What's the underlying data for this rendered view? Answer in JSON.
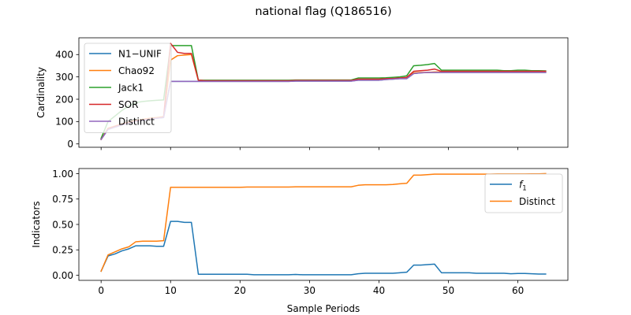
{
  "title": "national flag (Q186516)",
  "chart_data": [
    {
      "type": "line",
      "ylabel": "Cardinality",
      "xlabel": "",
      "xlim": [
        -3.2,
        67.2
      ],
      "ylim": [
        -15,
        475
      ],
      "xticks": [
        0,
        10,
        20,
        30,
        40,
        50,
        60
      ],
      "yticks": [
        0,
        100,
        200,
        300,
        400
      ],
      "legend_position": "upper left",
      "x": [
        0,
        1,
        2,
        3,
        4,
        5,
        6,
        7,
        8,
        9,
        10,
        11,
        12,
        13,
        14,
        15,
        16,
        17,
        18,
        19,
        20,
        21,
        22,
        23,
        24,
        25,
        26,
        27,
        28,
        29,
        30,
        31,
        32,
        33,
        34,
        35,
        36,
        37,
        38,
        39,
        40,
        41,
        42,
        43,
        44,
        45,
        46,
        47,
        48,
        49,
        50,
        51,
        52,
        53,
        54,
        55,
        56,
        57,
        58,
        59,
        60,
        61,
        62,
        63,
        64
      ],
      "series": [
        {
          "name": "N1−UNIF",
          "color": "#1f77b4",
          "values": [
            20,
            65,
            75,
            85,
            92,
            100,
            105,
            110,
            115,
            118,
            280,
            280,
            280,
            280,
            280,
            280,
            280,
            280,
            280,
            280,
            280,
            280,
            280,
            280,
            280,
            280,
            280,
            280,
            281,
            281,
            281,
            281,
            281,
            281,
            281,
            281,
            281,
            285,
            285,
            285,
            285,
            288,
            290,
            292,
            292,
            315,
            318,
            320,
            320,
            320,
            320,
            320,
            320,
            320,
            320,
            320,
            320,
            320,
            320,
            320,
            320,
            320,
            320,
            320,
            320
          ]
        },
        {
          "name": "Chao92",
          "color": "#ff7f0e",
          "values": [
            20,
            70,
            80,
            90,
            98,
            105,
            110,
            115,
            118,
            122,
            375,
            395,
            398,
            400,
            285,
            283,
            283,
            283,
            283,
            283,
            283,
            283,
            283,
            283,
            283,
            283,
            283,
            283,
            284,
            284,
            284,
            284,
            284,
            284,
            284,
            284,
            284,
            288,
            289,
            289,
            289,
            291,
            292,
            295,
            296,
            318,
            320,
            320,
            322,
            322,
            322,
            322,
            322,
            322,
            322,
            322,
            322,
            322,
            322,
            322,
            322,
            322,
            322,
            322,
            322
          ]
        },
        {
          "name": "Jack1",
          "color": "#2ca02c",
          "values": [
            25,
            100,
            125,
            150,
            170,
            185,
            190,
            193,
            195,
            197,
            440,
            440,
            440,
            440,
            285,
            285,
            285,
            285,
            285,
            285,
            285,
            285,
            285,
            285,
            285,
            285,
            285,
            285,
            286,
            286,
            286,
            286,
            286,
            286,
            286,
            286,
            286,
            295,
            295,
            295,
            295,
            296,
            298,
            300,
            305,
            350,
            352,
            355,
            360,
            330,
            330,
            330,
            330,
            330,
            330,
            330,
            330,
            330,
            328,
            328,
            330,
            330,
            328,
            328,
            327
          ]
        },
        {
          "name": "SOR",
          "color": "#d62728",
          "values": [
            20,
            68,
            78,
            88,
            95,
            102,
            108,
            112,
            116,
            120,
            450,
            410,
            405,
            405,
            285,
            283,
            283,
            283,
            283,
            283,
            283,
            283,
            283,
            283,
            283,
            283,
            283,
            283,
            284,
            284,
            284,
            284,
            284,
            284,
            284,
            284,
            284,
            290,
            290,
            290,
            290,
            292,
            293,
            295,
            298,
            325,
            328,
            330,
            335,
            325,
            325,
            325,
            325,
            325,
            325,
            325,
            325,
            325,
            325,
            325,
            325,
            325,
            325,
            325,
            325
          ]
        },
        {
          "name": "Distinct",
          "color": "#9467bd",
          "values": [
            20,
            65,
            75,
            85,
            92,
            100,
            105,
            110,
            115,
            118,
            280,
            280,
            280,
            280,
            280,
            280,
            280,
            280,
            280,
            280,
            280,
            280,
            280,
            280,
            280,
            280,
            280,
            280,
            281,
            281,
            281,
            281,
            281,
            281,
            281,
            281,
            281,
            285,
            285,
            285,
            285,
            288,
            290,
            292,
            292,
            315,
            318,
            320,
            320,
            320,
            320,
            320,
            320,
            320,
            320,
            320,
            320,
            320,
            320,
            320,
            320,
            320,
            320,
            320,
            320
          ]
        }
      ]
    },
    {
      "type": "line",
      "ylabel": "Indicators",
      "xlabel": "Sample Periods",
      "xlim": [
        -3.2,
        67.2
      ],
      "ylim": [
        -0.05,
        1.05
      ],
      "xticks": [
        0,
        10,
        20,
        30,
        40,
        50,
        60
      ],
      "yticks": [
        "0.00",
        "0.25",
        "0.50",
        "0.75",
        "1.00"
      ],
      "legend_position": "upper right",
      "x": [
        0,
        1,
        2,
        3,
        4,
        5,
        6,
        7,
        8,
        9,
        10,
        11,
        12,
        13,
        14,
        15,
        16,
        17,
        18,
        19,
        20,
        21,
        22,
        23,
        24,
        25,
        26,
        27,
        28,
        29,
        30,
        31,
        32,
        33,
        34,
        35,
        36,
        37,
        38,
        39,
        40,
        41,
        42,
        43,
        44,
        45,
        46,
        47,
        48,
        49,
        50,
        51,
        52,
        53,
        54,
        55,
        56,
        57,
        58,
        59,
        60,
        61,
        62,
        63,
        64
      ],
      "series": [
        {
          "name": "f1",
          "color": "#1f77b4",
          "values": [
            0.04,
            0.19,
            0.21,
            0.24,
            0.26,
            0.29,
            0.29,
            0.29,
            0.285,
            0.285,
            0.53,
            0.53,
            0.52,
            0.52,
            0.01,
            0.01,
            0.01,
            0.01,
            0.01,
            0.01,
            0.01,
            0.01,
            0.005,
            0.005,
            0.005,
            0.005,
            0.005,
            0.005,
            0.008,
            0.005,
            0.005,
            0.005,
            0.005,
            0.005,
            0.005,
            0.005,
            0.005,
            0.015,
            0.02,
            0.02,
            0.02,
            0.02,
            0.02,
            0.025,
            0.03,
            0.1,
            0.1,
            0.105,
            0.11,
            0.025,
            0.025,
            0.025,
            0.025,
            0.025,
            0.02,
            0.02,
            0.02,
            0.02,
            0.02,
            0.015,
            0.018,
            0.018,
            0.015,
            0.012,
            0.012
          ]
        },
        {
          "name": "Distinct",
          "color": "#ff7f0e",
          "values": [
            0.04,
            0.2,
            0.23,
            0.26,
            0.28,
            0.33,
            0.335,
            0.335,
            0.335,
            0.34,
            0.865,
            0.865,
            0.865,
            0.865,
            0.865,
            0.865,
            0.865,
            0.865,
            0.865,
            0.865,
            0.865,
            0.868,
            0.868,
            0.868,
            0.868,
            0.868,
            0.868,
            0.868,
            0.87,
            0.87,
            0.87,
            0.87,
            0.87,
            0.87,
            0.87,
            0.87,
            0.87,
            0.885,
            0.89,
            0.89,
            0.89,
            0.89,
            0.893,
            0.9,
            0.905,
            0.985,
            0.985,
            0.99,
            0.995,
            0.995,
            0.995,
            0.995,
            0.995,
            0.995,
            0.995,
            0.995,
            0.995,
            0.997,
            0.997,
            0.997,
            0.997,
            0.997,
            0.998,
            0.998,
            1.0
          ]
        }
      ]
    }
  ]
}
